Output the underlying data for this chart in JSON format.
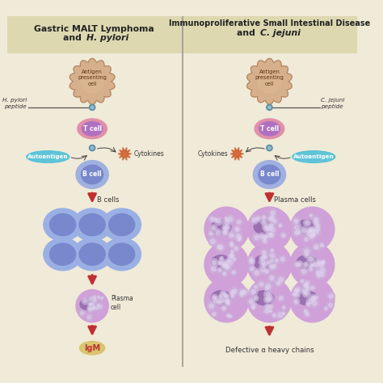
{
  "bg_color": "#f0ead8",
  "header_color": "#ddd8b0",
  "divider_color": "#999999",
  "title_left_line1": "Gastric MALT Lymphoma",
  "title_left_line2": "and  H. pylori",
  "title_right_line1": "Immunoproliferative Small Intestinal Disease",
  "title_right_line2": "and  C. jejuni",
  "antigen_cell_color": "#d4aa84",
  "antigen_cell_edge": "#b08060",
  "tcell_outer": "#e090a8",
  "tcell_inner": "#b070c0",
  "bcell_outer": "#a0b0e0",
  "bcell_inner": "#7888cc",
  "autoantigen_color": "#50c0d8",
  "cytokine_color": "#d06030",
  "arrow_color": "#c03030",
  "connector_color": "#6090a8",
  "bcell_grid_outer": "#9aafe0",
  "bcell_grid_inner": "#7888cc",
  "plasma_outer": "#d0a0d8",
  "plasma_inner": "#a070b0",
  "plasma_bubble": "#c8b0d8",
  "igm_color": "#d4c060",
  "igm_text": "#c03030",
  "defective_text": "#333333"
}
